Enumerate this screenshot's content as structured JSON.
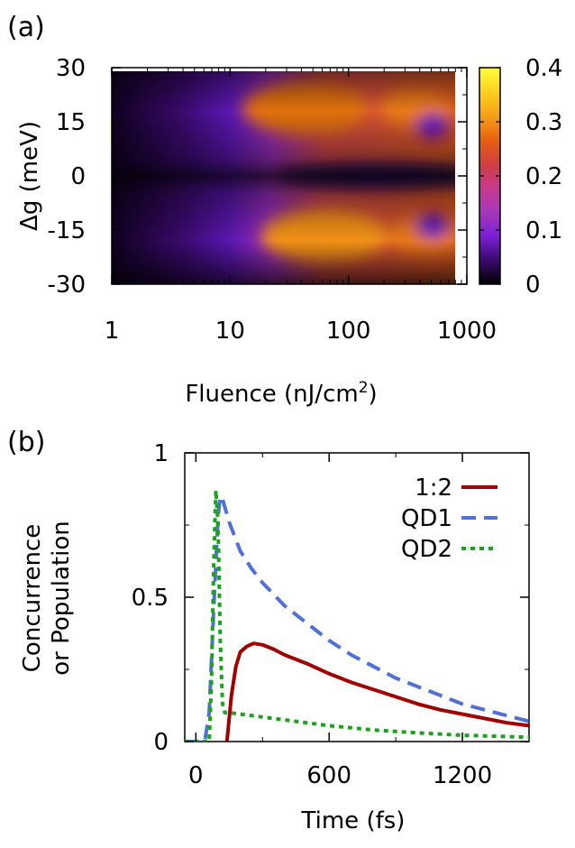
{
  "chart_data": [
    {
      "panel_label": "(a)",
      "type": "heatmap",
      "xlabel": "Fluence (nJ/cm",
      "xlabel_sup": "2",
      "ylabel": "Δg (meV)",
      "x_scale": "log",
      "xlim": [
        1,
        1000
      ],
      "ylim": [
        -30,
        30
      ],
      "x_ticks": [
        1,
        10,
        100,
        1000
      ],
      "x_tick_labels": [
        "1",
        "10",
        "100",
        "1000"
      ],
      "y_ticks": [
        -30,
        -15,
        0,
        15,
        30
      ],
      "y_tick_labels": [
        "-30",
        "-15",
        "0",
        "15",
        "30"
      ],
      "colorbar": {
        "range": [
          0,
          0.4
        ],
        "ticks": [
          0,
          0.1,
          0.2,
          0.3,
          0.4
        ],
        "tick_labels": [
          "0",
          "0.1",
          "0.2",
          "0.3",
          "0.4"
        ],
        "colormap": [
          "#000000",
          "#3a0a6e",
          "#7a20d8",
          "#a838b8",
          "#c43a8e",
          "#d04040",
          "#e86010",
          "#f5a018",
          "#ffd020",
          "#ffff40"
        ]
      },
      "grid": false
    },
    {
      "panel_label": "(b)",
      "type": "line",
      "xlabel": "Time (fs)",
      "ylabel": "Concurrence",
      "ylabel2": "or Population",
      "xlim": [
        -50,
        1500
      ],
      "ylim": [
        0,
        1
      ],
      "x_ticks": [
        0,
        600,
        1200
      ],
      "x_tick_labels": [
        "0",
        "600",
        "1200"
      ],
      "y_ticks": [
        0,
        0.5,
        1
      ],
      "y_tick_labels": [
        "0",
        "0.5",
        "1"
      ],
      "legend_position": "top-right",
      "grid": false,
      "series": [
        {
          "name": "1:2",
          "color": "#a00000",
          "style": "solid",
          "x": [
            140,
            150,
            160,
            180,
            200,
            230,
            260,
            300,
            350,
            400,
            500,
            600,
            700,
            800,
            900,
            1000,
            1100,
            1200,
            1300,
            1400,
            1500
          ],
          "y": [
            0,
            0.08,
            0.16,
            0.26,
            0.31,
            0.33,
            0.34,
            0.335,
            0.32,
            0.3,
            0.27,
            0.235,
            0.205,
            0.18,
            0.155,
            0.13,
            0.11,
            0.095,
            0.08,
            0.065,
            0.055
          ]
        },
        {
          "name": "QD1",
          "color": "#5070d8",
          "style": "dashed",
          "x": [
            -50,
            40,
            60,
            80,
            100,
            110,
            120,
            150,
            200,
            250,
            300,
            400,
            500,
            600,
            700,
            800,
            900,
            1000,
            1100,
            1200,
            1300,
            1400,
            1500
          ],
          "y": [
            0,
            0,
            0.1,
            0.45,
            0.78,
            0.85,
            0.84,
            0.76,
            0.66,
            0.6,
            0.55,
            0.47,
            0.41,
            0.35,
            0.3,
            0.26,
            0.22,
            0.19,
            0.16,
            0.13,
            0.11,
            0.09,
            0.07
          ]
        },
        {
          "name": "QD2",
          "color": "#20a020",
          "style": "dotted",
          "x": [
            -50,
            60,
            70,
            80,
            90,
            100,
            110,
            120,
            130,
            150,
            200,
            300,
            400,
            500,
            600,
            800,
            1000,
            1200,
            1500
          ],
          "y": [
            0,
            0,
            0.2,
            0.6,
            0.87,
            0.75,
            0.35,
            0.13,
            0.1,
            0.1,
            0.095,
            0.085,
            0.075,
            0.065,
            0.055,
            0.04,
            0.03,
            0.022,
            0.015
          ]
        }
      ]
    }
  ]
}
